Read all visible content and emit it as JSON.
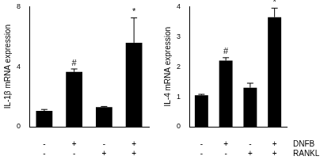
{
  "chart_data": [
    {
      "type": "bar",
      "y_label": "IL-1β mRNA expression",
      "values": [
        1.05,
        3.65,
        1.3,
        5.6
      ],
      "errors": [
        0.1,
        0.2,
        0.05,
        1.65
      ],
      "annotations": [
        null,
        "#",
        null,
        "*"
      ],
      "color": "#000000",
      "ylim": [
        0,
        8
      ],
      "yticks": [
        0,
        4,
        8
      ],
      "grid": false,
      "x_table": {
        "rows": [
          [
            "-",
            "+",
            "-",
            "+"
          ],
          [
            "-",
            "-",
            "+",
            "+"
          ]
        ]
      }
    },
    {
      "type": "bar",
      "y_label": "IL-4 mRNA expression",
      "values": [
        1.05,
        2.2,
        1.3,
        3.65
      ],
      "errors": [
        0.03,
        0.1,
        0.15,
        0.3
      ],
      "annotations": [
        null,
        "#",
        null,
        "*"
      ],
      "color": "#000000",
      "ylim": [
        0,
        4
      ],
      "yticks": [
        0,
        1,
        2,
        3,
        4
      ],
      "grid": false,
      "x_table": {
        "row_labels": [
          "DNFB",
          "RANKL"
        ],
        "rows": [
          [
            "-",
            "+",
            "-",
            "+"
          ],
          [
            "-",
            "-",
            "+",
            "+"
          ]
        ]
      }
    }
  ]
}
